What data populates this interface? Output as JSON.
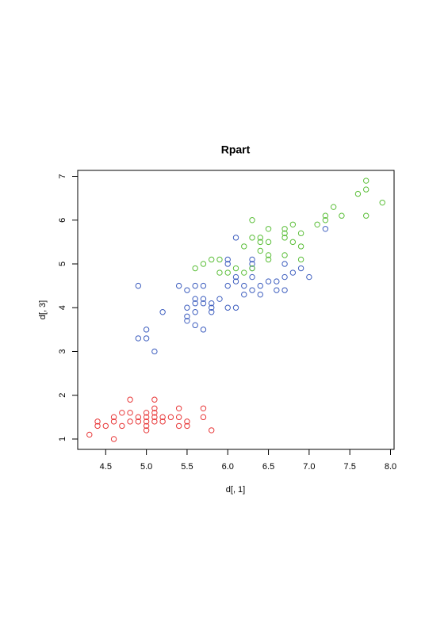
{
  "chart_data": {
    "type": "scatter",
    "title": "Rpart",
    "x_label": "d[, 1]",
    "y_label": "d[, 3]",
    "xlim": [
      4.156,
      8.044
    ],
    "ylim": [
      0.764,
      7.136
    ],
    "xticks": [
      {
        "value": 4.5,
        "label": "4.5"
      },
      {
        "value": 5,
        "label": "5.0"
      },
      {
        "value": 5.5,
        "label": "5.5"
      },
      {
        "value": 6,
        "label": "6.0"
      },
      {
        "value": 6.5,
        "label": "6.5"
      },
      {
        "value": 7,
        "label": "7.0"
      },
      {
        "value": 7.5,
        "label": "7.5"
      },
      {
        "value": 8,
        "label": "8.0"
      }
    ],
    "yticks": [
      1,
      2,
      3,
      4,
      5,
      6,
      7
    ],
    "series": [
      {
        "color": "#e8393a",
        "x": [
          4.3,
          4.4,
          4.4,
          4.5,
          4.6,
          4.6,
          4.6,
          4.7,
          4.7,
          4.8,
          4.8,
          4.8,
          4.9,
          4.9,
          5.0,
          5.0,
          5.0,
          5.0,
          5.0,
          5.1,
          5.1,
          5.1,
          5.1,
          5.1,
          5.2,
          5.2,
          5.3,
          5.4,
          5.4,
          5.4,
          5.5,
          5.5,
          5.7,
          5.7,
          5.8
        ],
        "values": [
          1.1,
          1.3,
          1.4,
          1.3,
          1.0,
          1.4,
          1.5,
          1.3,
          1.6,
          1.4,
          1.6,
          1.9,
          1.4,
          1.5,
          1.2,
          1.3,
          1.4,
          1.5,
          1.6,
          1.4,
          1.5,
          1.6,
          1.7,
          1.9,
          1.4,
          1.5,
          1.5,
          1.3,
          1.5,
          1.7,
          1.3,
          1.4,
          1.5,
          1.7,
          1.2
        ]
      },
      {
        "color": "#3f5fbf",
        "x": [
          4.9,
          4.9,
          5.0,
          5.0,
          5.1,
          5.2,
          5.4,
          5.5,
          5.5,
          5.5,
          5.5,
          5.6,
          5.6,
          5.6,
          5.6,
          5.6,
          5.7,
          5.7,
          5.7,
          5.7,
          5.8,
          5.8,
          5.8,
          5.9,
          6.0,
          6.0,
          6.0,
          6.0,
          6.1,
          6.1,
          6.1,
          6.1,
          6.2,
          6.2,
          6.3,
          6.3,
          6.3,
          6.3,
          6.3,
          6.4,
          6.4,
          6.5,
          6.6,
          6.6,
          6.7,
          6.7,
          6.7,
          6.8,
          6.9,
          7.0,
          7.2
        ],
        "values": [
          3.3,
          4.5,
          3.3,
          3.5,
          3.0,
          3.9,
          4.5,
          3.7,
          3.8,
          4.0,
          4.4,
          3.6,
          3.9,
          4.1,
          4.2,
          4.5,
          3.5,
          4.1,
          4.2,
          4.5,
          3.9,
          4.0,
          4.1,
          4.2,
          4.0,
          4.5,
          5.0,
          5.1,
          4.0,
          4.6,
          4.7,
          5.6,
          4.3,
          4.5,
          4.4,
          4.7,
          4.9,
          5.0,
          5.1,
          4.3,
          4.5,
          4.6,
          4.4,
          4.6,
          4.4,
          4.7,
          5.0,
          4.8,
          4.9,
          4.7,
          5.8
        ]
      },
      {
        "color": "#5cbf3a",
        "x": [
          5.6,
          5.7,
          5.8,
          5.9,
          5.9,
          6.0,
          6.1,
          6.2,
          6.2,
          6.3,
          6.3,
          6.3,
          6.4,
          6.4,
          6.4,
          6.5,
          6.5,
          6.5,
          6.5,
          6.7,
          6.7,
          6.7,
          6.7,
          6.8,
          6.8,
          6.9,
          6.9,
          6.9,
          7.1,
          7.2,
          7.2,
          7.3,
          7.4,
          7.6,
          7.7,
          7.7,
          7.7,
          7.9
        ],
        "values": [
          4.9,
          5.0,
          5.1,
          4.8,
          5.1,
          4.8,
          4.9,
          4.8,
          5.4,
          4.9,
          5.6,
          6.0,
          5.3,
          5.5,
          5.6,
          5.1,
          5.2,
          5.5,
          5.8,
          5.2,
          5.6,
          5.7,
          5.8,
          5.5,
          5.9,
          5.1,
          5.4,
          5.7,
          5.9,
          6.0,
          6.1,
          6.3,
          6.1,
          6.6,
          6.1,
          6.7,
          6.9,
          6.4
        ]
      }
    ]
  }
}
